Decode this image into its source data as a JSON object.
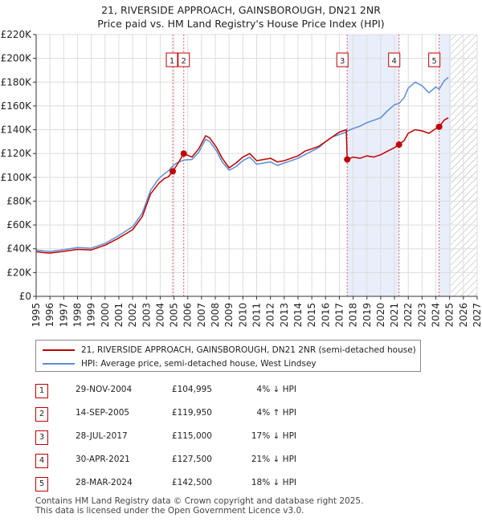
{
  "chart_data": {
    "type": "line",
    "title": "21, RIVERSIDE APPROACH, GAINSBOROUGH, DN21 2NR",
    "subtitle": "Price paid vs. HM Land Registry's House Price Index (HPI)",
    "xlim": [
      1995,
      2027
    ],
    "ylim": [
      0,
      220000
    ],
    "xticks": [
      "1995",
      "1996",
      "1997",
      "1998",
      "1999",
      "2000",
      "2001",
      "2002",
      "2003",
      "2004",
      "2005",
      "2006",
      "2007",
      "2008",
      "2009",
      "2010",
      "2011",
      "2012",
      "2013",
      "2014",
      "2015",
      "2016",
      "2017",
      "2018",
      "2019",
      "2020",
      "2021",
      "2022",
      "2023",
      "2024",
      "2025",
      "2026",
      "2027"
    ],
    "yticks": [
      0,
      20000,
      40000,
      60000,
      80000,
      100000,
      120000,
      140000,
      160000,
      180000,
      200000,
      220000
    ],
    "ytick_labels": [
      "£0",
      "£20K",
      "£40K",
      "£60K",
      "£80K",
      "£100K",
      "£120K",
      "£140K",
      "£160K",
      "£180K",
      "£200K",
      "£220K"
    ],
    "grid": true,
    "forecast_hatch_start": 2025.1,
    "highlight_spans": [
      [
        2017.57,
        2021.33
      ],
      [
        2024.24,
        2025.1
      ]
    ],
    "series": [
      {
        "name": "21, RIVERSIDE APPROACH, GAINSBOROUGH, DN21 2NR (semi-detached house)",
        "color": "#c00000",
        "x": [
          1995,
          1995.5,
          1996,
          1997,
          1998,
          1999,
          2000,
          2001,
          2002,
          2002.7,
          2003.3,
          2003.9,
          2004.3,
          2004.6,
          2004.91,
          2005.2,
          2005.71,
          2006.3,
          2006.8,
          2007.3,
          2007.6,
          2008.1,
          2008.5,
          2009,
          2009.5,
          2010,
          2010.5,
          2011,
          2011.5,
          2012,
          2012.5,
          2013,
          2013.5,
          2014,
          2014.5,
          2015,
          2015.5,
          2016,
          2016.5,
          2017,
          2017.5,
          2017.57,
          2018,
          2018.5,
          2019,
          2019.5,
          2020,
          2020.5,
          2021,
          2021.33,
          2021.7,
          2022,
          2022.5,
          2023,
          2023.5,
          2024,
          2024.24,
          2024.6,
          2024.9
        ],
        "y": [
          37500,
          36800,
          36400,
          37800,
          39500,
          39000,
          43000,
          49000,
          56000,
          67000,
          86000,
          95000,
          99000,
          100500,
          104995,
          110000,
          119950,
          117000,
          124000,
          135000,
          133000,
          125000,
          116000,
          108000,
          112000,
          117000,
          120000,
          114000,
          115000,
          116000,
          113000,
          114000,
          116000,
          118000,
          122000,
          124000,
          126000,
          130000,
          134000,
          138000,
          140000,
          115000,
          117000,
          116000,
          118000,
          117000,
          119000,
          122000,
          125000,
          127500,
          131000,
          137000,
          140000,
          139000,
          137000,
          141000,
          142500,
          148000,
          150000
        ]
      },
      {
        "name": "HPI: Average price, semi-detached house, West Lindsey",
        "color": "#5b8ed6",
        "x": [
          1995,
          1995.5,
          1996,
          1997,
          1998,
          1999,
          2000,
          2001,
          2002,
          2002.7,
          2003.3,
          2003.9,
          2004.3,
          2004.6,
          2004.91,
          2005.2,
          2005.71,
          2006.3,
          2006.8,
          2007.3,
          2007.6,
          2008.1,
          2008.5,
          2009,
          2009.5,
          2010,
          2010.5,
          2011,
          2011.5,
          2012,
          2012.5,
          2013,
          2013.5,
          2014,
          2014.5,
          2015,
          2015.5,
          2016,
          2016.5,
          2017,
          2017.5,
          2017.57,
          2018,
          2018.5,
          2019,
          2019.5,
          2020,
          2020.5,
          2021,
          2021.33,
          2021.7,
          2022,
          2022.5,
          2023,
          2023.5,
          2024,
          2024.24,
          2024.6,
          2024.9
        ],
        "y": [
          39000,
          38200,
          37700,
          39200,
          41000,
          40400,
          44500,
          51000,
          58500,
          70000,
          89000,
          99000,
          103000,
          105500,
          109500,
          112000,
          114500,
          115000,
          121000,
          132000,
          130000,
          122000,
          113000,
          106000,
          109000,
          114000,
          117000,
          111000,
          112000,
          113000,
          110000,
          112000,
          114000,
          116000,
          119000,
          122000,
          125000,
          130000,
          134000,
          136000,
          138000,
          139000,
          141000,
          143000,
          146000,
          148000,
          150000,
          156000,
          161000,
          162000,
          167000,
          175000,
          180000,
          177000,
          171000,
          176000,
          174000,
          181000,
          184000
        ]
      }
    ],
    "sales": [
      {
        "label": "1",
        "x": 2004.91,
        "price": 104995
      },
      {
        "label": "2",
        "x": 2005.71,
        "price": 119950
      },
      {
        "label": "3",
        "x": 2017.57,
        "price": 115000
      },
      {
        "label": "4",
        "x": 2021.33,
        "price": 127500
      },
      {
        "label": "5",
        "x": 2024.24,
        "price": 142500
      }
    ]
  },
  "legend": {
    "property_label": "21, RIVERSIDE APPROACH, GAINSBOROUGH, DN21 2NR (semi-detached house)",
    "hpi_label": "HPI: Average price, semi-detached house, West Lindsey",
    "property_color": "#c00000",
    "hpi_color": "#5b8ed6"
  },
  "table": [
    {
      "num": "1",
      "date": "29-NOV-2004",
      "price": "£104,995",
      "hpi": "4% ↓ HPI"
    },
    {
      "num": "2",
      "date": "14-SEP-2005",
      "price": "£119,950",
      "hpi": "4% ↑ HPI"
    },
    {
      "num": "3",
      "date": "28-JUL-2017",
      "price": "£115,000",
      "hpi": "17% ↓ HPI"
    },
    {
      "num": "4",
      "date": "30-APR-2021",
      "price": "£127,500",
      "hpi": "21% ↓ HPI"
    },
    {
      "num": "5",
      "date": "28-MAR-2024",
      "price": "£142,500",
      "hpi": "18% ↓ HPI"
    }
  ],
  "footer": {
    "line1": "Contains HM Land Registry data © Crown copyright and database right 2025.",
    "line2": "This data is licensed under the Open Government Licence v3.0."
  }
}
